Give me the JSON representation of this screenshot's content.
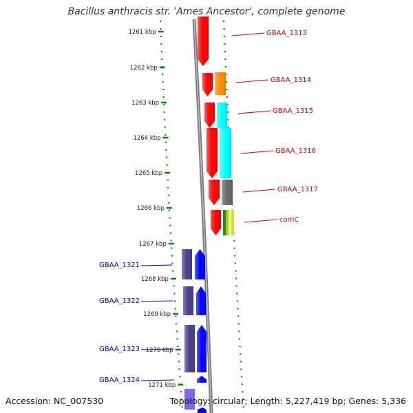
{
  "title": "Bacillus anthracis str. 'Ames Ancestor', complete genome",
  "footer": {
    "accession": "Accession: NC_007530",
    "topology": "Topology: circular; Length: 5,227,419 bp; Genes: 5,336"
  },
  "colors": {
    "forward_gene": "#ff0000",
    "reverse_gene": "#0000ff",
    "forward_label": "#cc0000",
    "reverse_label": "#0000cc",
    "tick": "#008800",
    "backbone": "#888888"
  },
  "ruler_ticks": [
    "1261 kbp",
    "1262 kbp",
    "1263 kbp",
    "1264 kbp",
    "1265 kbp",
    "1266 kbp",
    "1267 kbp",
    "1268 kbp",
    "1269 kbp",
    "1270 kbp",
    "1271 kbp"
  ],
  "forward_genes": [
    {
      "name": "GBAA_1313",
      "cog_color": ""
    },
    {
      "name": "GBAA_1314",
      "cog_color": "#ff8c00"
    },
    {
      "name": "GBAA_1315",
      "cog_color": "#00ffff"
    },
    {
      "name": "GBAA_1316",
      "cog_color": "#00ffff"
    },
    {
      "name": "GBAA_1317",
      "cog_color": "#666666"
    },
    {
      "name": "comC",
      "cog_color": "#9acd32"
    }
  ],
  "reverse_genes": [
    {
      "name": "GBAA_1321"
    },
    {
      "name": "GBAA_1322"
    },
    {
      "name": "GBAA_1323"
    },
    {
      "name": "GBAA_1324"
    }
  ]
}
